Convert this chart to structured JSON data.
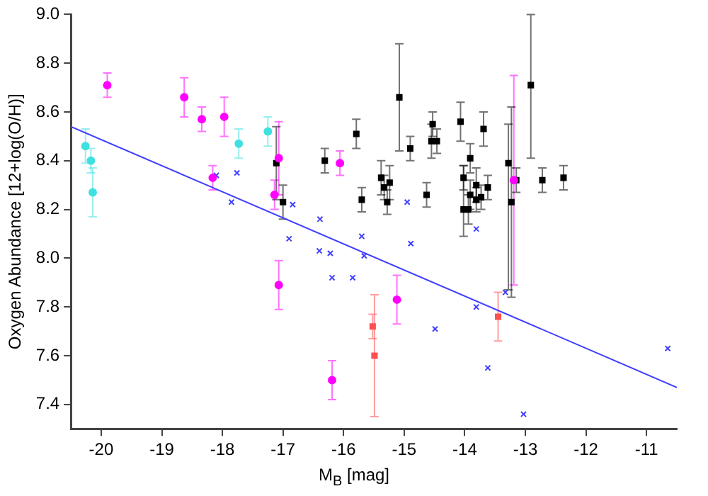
{
  "chart_data": {
    "type": "scatter",
    "xlabel": "M$_{B}$ [mag]",
    "ylabel": "Oxygen Abundance [12+log(O/H)]",
    "xlim": [
      -20.5,
      -10.5
    ],
    "xticks": [
      -20,
      -19,
      -18,
      -17,
      -16,
      -15,
      -14,
      -13,
      -12,
      -11
    ],
    "ylim": [
      7.3,
      9.0
    ],
    "yticks": [
      7.4,
      7.6,
      7.8,
      {
        "value": 8,
        "label": "8.0"
      },
      8.2,
      8.4,
      8.6,
      8.8,
      {
        "value": 9,
        "label": "9.0"
      }
    ],
    "grid": false,
    "legend": false,
    "series": [
      {
        "type": "scatter",
        "marker": "circle",
        "color": "#ff00ff",
        "x": [
          -19.9,
          -18.63,
          -18.34,
          -17.97,
          -18.16,
          -17.07,
          -17.14,
          -17.07,
          -16.06,
          -16.19,
          -15.12,
          -13.19
        ],
        "values": [
          8.71,
          8.66,
          8.57,
          8.58,
          8.33,
          8.41,
          8.26,
          7.89,
          8.39,
          7.5,
          7.83,
          8.32
        ],
        "errors": [
          0.05,
          0.08,
          0.05,
          0.08,
          0.05,
          0.15,
          0.06,
          0.1,
          0.05,
          0.08,
          0.1,
          0.43
        ]
      },
      {
        "type": "scatter",
        "marker": "circle",
        "color": "#40e0e0",
        "x": [
          -20.26,
          -20.17,
          -20.14,
          -17.73,
          -17.25
        ],
        "values": [
          8.46,
          8.4,
          8.27,
          8.47,
          8.52
        ],
        "errors": [
          0.07,
          0.05,
          0.1,
          0.06,
          0.06
        ]
      },
      {
        "type": "scatter",
        "marker": "square",
        "color": "#ff5050",
        "x": [
          -15.52,
          -15.49,
          -13.45
        ],
        "values": [
          7.72,
          7.6,
          7.76
        ],
        "errors": [
          0.05,
          0.25,
          0.1
        ]
      },
      {
        "type": "scatter",
        "marker": "cross",
        "color": "#4040ff",
        "x": [
          -18.1,
          -17.76,
          -17.85,
          -16.9,
          -16.84,
          -16.39,
          -16.4,
          -16.22,
          -16.19,
          -15.85,
          -15.7,
          -15.66,
          -14.95,
          -14.89,
          -14.49,
          -13.81,
          -13.81,
          -13.62,
          -13.33,
          -13.03,
          -10.65
        ],
        "values": [
          8.34,
          8.35,
          8.23,
          8.08,
          8.22,
          8.16,
          8.03,
          8.02,
          7.92,
          7.92,
          8.09,
          8.01,
          8.23,
          8.06,
          7.71,
          8.12,
          7.8,
          7.55,
          7.86,
          7.36,
          7.63
        ]
      },
      {
        "type": "scatter",
        "marker": "square",
        "color": "#000000",
        "x": [
          -17.11,
          -17.0,
          -16.31,
          -15.79,
          -15.7,
          -15.08,
          -14.9,
          -15.38,
          -15.33,
          -15.24,
          -15.28,
          -14.63,
          -14.53,
          -14.55,
          -14.46,
          -14.07,
          -13.69,
          -13.91,
          -14.02,
          -14.02,
          -13.94,
          -13.91,
          -13.81,
          -13.81,
          -13.73,
          -13.62,
          -13.28,
          -13.23,
          -13.15,
          -12.91,
          -12.72,
          -12.37
        ],
        "values": [
          8.39,
          8.23,
          8.4,
          8.51,
          8.24,
          8.66,
          8.45,
          8.33,
          8.29,
          8.31,
          8.23,
          8.26,
          8.55,
          8.48,
          8.48,
          8.56,
          8.53,
          8.41,
          8.33,
          8.2,
          8.2,
          8.26,
          8.3,
          8.24,
          8.25,
          8.29,
          8.39,
          8.23,
          8.32,
          8.71,
          8.32,
          8.33
        ],
        "errors": [
          0.15,
          0.07,
          0.05,
          0.06,
          0.05,
          0.22,
          0.05,
          0.07,
          0.05,
          0.07,
          0.05,
          0.05,
          0.05,
          0.07,
          0.05,
          0.08,
          0.07,
          0.06,
          0.05,
          [
            8.09,
            8.38
          ],
          0.06,
          0.06,
          0.07,
          0.05,
          0.05,
          0.05,
          [
            7.87,
            8.55
          ],
          [
            7.84,
            8.62
          ],
          0.05,
          [
            8.41,
            9.0
          ],
          0.05,
          0.05
        ]
      },
      {
        "type": "line",
        "marker": "none",
        "color": "#4040ff",
        "x": [
          -20.5,
          -10.5
        ],
        "values": [
          8.54,
          7.47
        ]
      }
    ]
  }
}
